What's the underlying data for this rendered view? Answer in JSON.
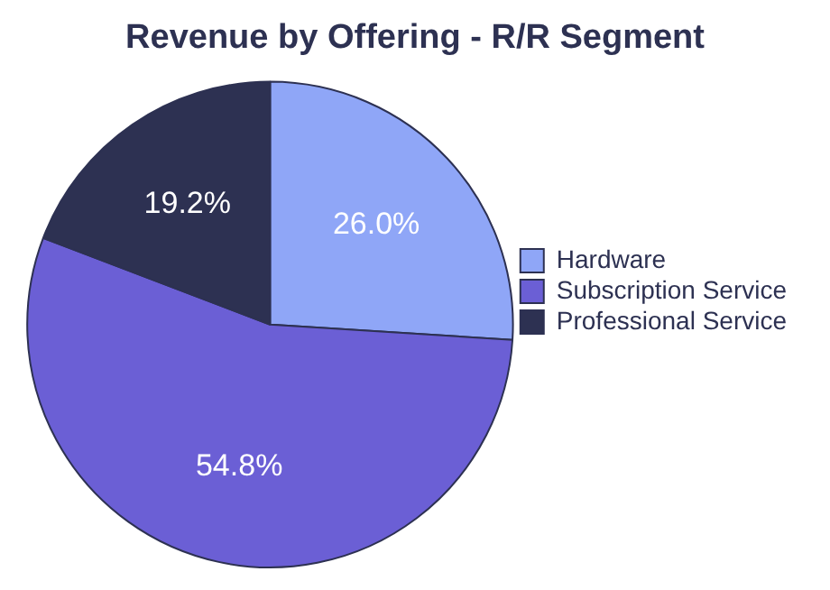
{
  "chart_data": {
    "type": "pie",
    "title": "Revenue by Offering - R/R Segment",
    "categories": [
      "Hardware",
      "Subscription Service",
      "Professional Service"
    ],
    "values": [
      26.0,
      54.8,
      19.2
    ],
    "colors": [
      "#8fa6f7",
      "#6b5fd5",
      "#2d3152"
    ],
    "value_labels": [
      "26.0%",
      "54.8%",
      "19.2%"
    ],
    "legend": "right"
  }
}
